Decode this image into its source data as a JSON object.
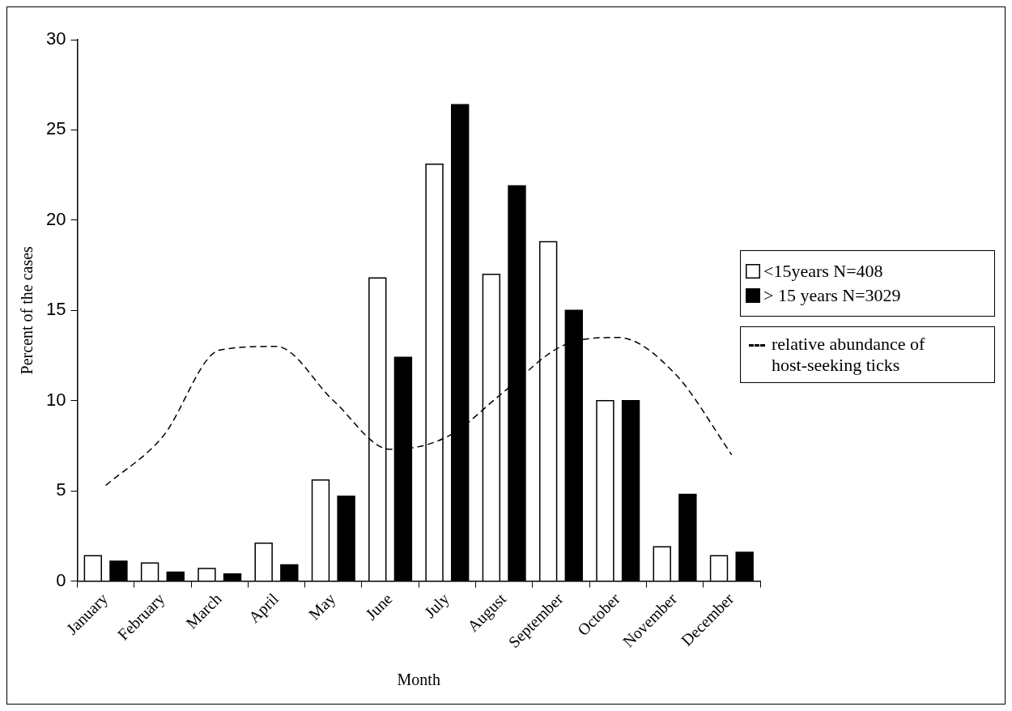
{
  "chart_data": {
    "type": "bar",
    "xlabel": "Month",
    "ylabel": "Percent of the cases",
    "categories": [
      "January",
      "February",
      "March",
      "April",
      "May",
      "June",
      "July",
      "August",
      "September",
      "October",
      "November",
      "December"
    ],
    "series": [
      {
        "name": "<15years N=408",
        "color": "#ffffff",
        "values": [
          1.4,
          1.0,
          0.7,
          2.1,
          5.6,
          16.8,
          23.1,
          17.0,
          18.8,
          10.0,
          1.9,
          1.4
        ]
      },
      {
        "name": "> 15 years N=3029",
        "color": "#000000",
        "values": [
          1.1,
          0.5,
          0.4,
          0.9,
          4.7,
          12.4,
          26.4,
          21.9,
          15.0,
          10.0,
          4.8,
          1.6
        ]
      },
      {
        "name": "relative abundance of  host-seeking ticks",
        "type": "line",
        "color": "#000000",
        "line_style": "dashed",
        "marker": "none",
        "values": [
          5.3,
          8.0,
          12.8,
          13.0,
          10.0,
          7.3,
          8.0,
          10.5,
          13.0,
          13.5,
          11.5,
          7.0
        ]
      }
    ],
    "ylim": [
      0,
      30
    ],
    "yticks": [
      0,
      5,
      10,
      15,
      20,
      25,
      30
    ],
    "grid": false,
    "legend": "right"
  }
}
